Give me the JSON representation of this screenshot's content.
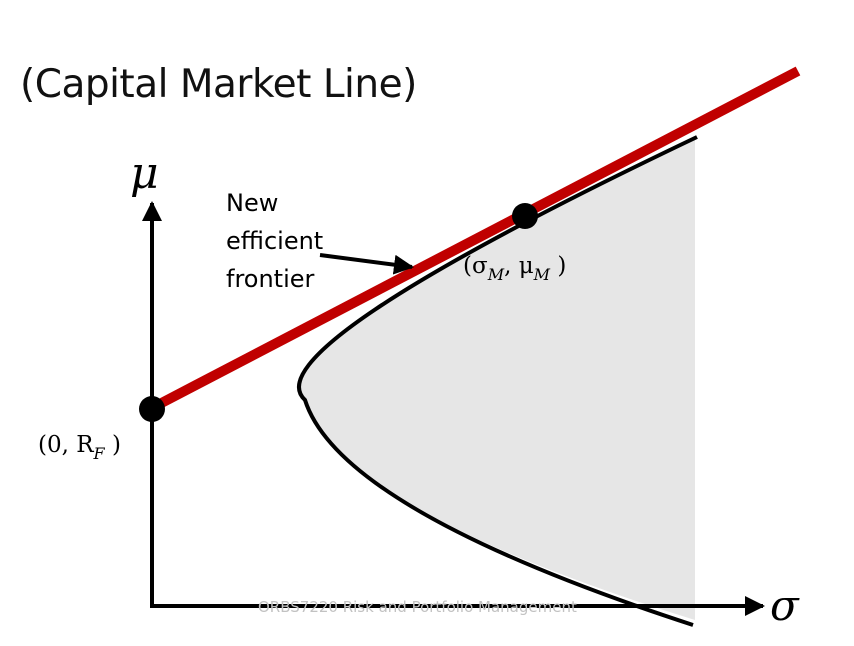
{
  "slide": {
    "title": "(Capital Market Line)",
    "footer": "ORBS7220 Risk and Portfolio Management"
  },
  "diagram": {
    "y_axis_label": "μ",
    "x_axis_label": "σ",
    "annotation_lines": [
      "New",
      "efficient",
      "frontier"
    ],
    "risk_free_point": {
      "prefix": "(0, R",
      "subscript": "F",
      "suffix": " )"
    },
    "market_point": {
      "prefix": "(σ",
      "sub1": "M",
      "middle": ", μ",
      "sub2": "M",
      "suffix": " )"
    },
    "colors": {
      "cml_line": "#c00000",
      "frontier_curve": "#000000",
      "feasible_region": "#e6e6e6",
      "axes": "#000000",
      "points": "#000000"
    }
  }
}
